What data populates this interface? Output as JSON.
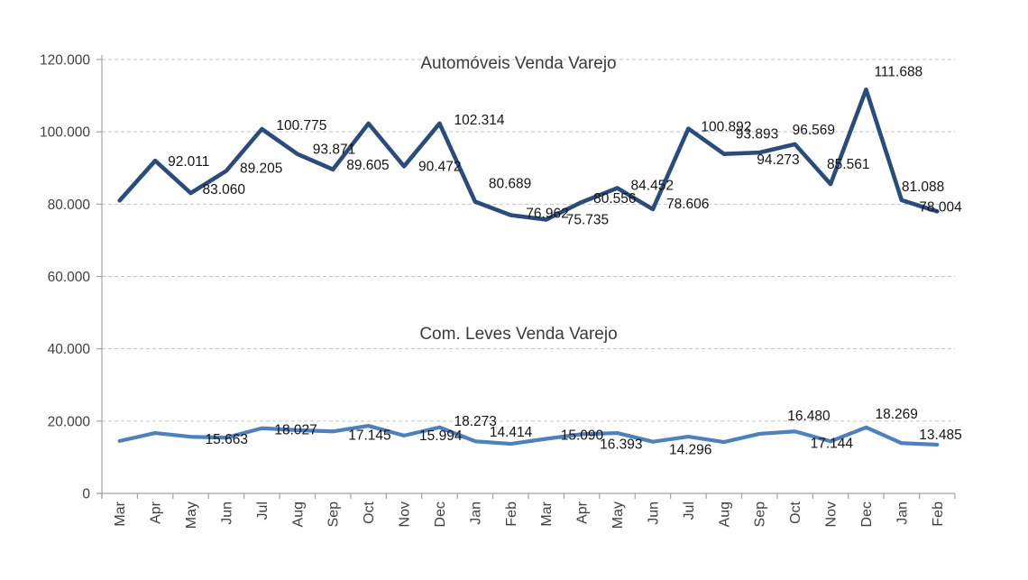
{
  "page": {
    "background_color": "#ffffff"
  },
  "chart_data": {
    "type": "line",
    "title": "",
    "grid": "horizontal dashed gridlines on, no vertical gridlines",
    "legend_position": "none (series names floated above each line)",
    "xlabel": "",
    "ylabel": "",
    "ylim": [
      0,
      120000
    ],
    "ytick_step": 20000,
    "ytick_labels": [
      "0",
      "20.000",
      "40.000",
      "60.000",
      "80.000",
      "100.000",
      "120.000"
    ],
    "x_tick_labels": [
      "Mar",
      "Apr",
      "May",
      "Jun",
      "Jul",
      "Aug",
      "Sep",
      "Oct",
      "Nov",
      "Dec",
      "Jan",
      "Feb",
      "Mar",
      "Apr",
      "May",
      "Jun",
      "Jul",
      "Aug",
      "Sep",
      "Oct",
      "Nov",
      "Dec",
      "Jan",
      "Feb"
    ],
    "axis_color": "#a3a3a3",
    "gridline_color": "#c3c3c3",
    "axis_text_color": "#3f3f3f",
    "data_label_color": "#141414",
    "series": [
      {
        "name": "Automóveis Venda Varejo",
        "color": "#2a4b7c",
        "stroke_width": 4.6,
        "values": [
          81000,
          92011,
          83060,
          89205,
          100775,
          93871,
          89605,
          102300,
          90472,
          102314,
          80689,
          76962,
          75735,
          80556,
          84452,
          78606,
          100892,
          93893,
          94273,
          96569,
          85561,
          111688,
          81088,
          78004
        ],
        "point_labels": [
          null,
          "92.011",
          "83.060",
          "89.205",
          "100.775",
          "93.871",
          "89.605",
          null,
          "90.472",
          "102.314",
          "80.689",
          "76.962",
          "75.735",
          "80.556",
          "84.452",
          "78.606",
          "100.892",
          "93.893",
          "94.273",
          "96.569",
          "85.561",
          "111.688",
          "81.088",
          "78.004"
        ],
        "label_offsets": [
          null,
          [
            14,
            6
          ],
          [
            13,
            1
          ],
          [
            15,
            2
          ],
          [
            16,
            1
          ],
          [
            17,
            0
          ],
          [
            15,
            0
          ],
          null,
          [
            16,
            5
          ],
          [
            16,
            1
          ],
          [
            15,
            -15
          ],
          [
            17,
            3
          ],
          [
            22,
            5
          ],
          [
            13,
            1
          ],
          [
            15,
            2
          ],
          [
            15,
            -1
          ],
          [
            14,
            3
          ],
          [
            13,
            -17
          ],
          [
            -3,
            13
          ],
          [
            -3,
            -11
          ],
          [
            -4,
            -17
          ],
          [
            9,
            -15
          ],
          [
            0,
            -10
          ],
          [
            -20,
            0
          ]
        ]
      },
      {
        "name": "Com. Leves Venda Varejo",
        "color": "#4e80bc",
        "stroke_width": 4.2,
        "values": [
          14500,
          16700,
          15663,
          15400,
          18027,
          17500,
          17145,
          18700,
          15994,
          18273,
          14414,
          13700,
          15090,
          16393,
          16700,
          14296,
          15700,
          14200,
          16480,
          17144,
          14400,
          18269,
          13900,
          13485
        ],
        "point_labels": [
          null,
          null,
          "15.663",
          null,
          "18.027",
          null,
          "17.145",
          null,
          "15.994",
          "18.273",
          "14.414",
          null,
          "15.090",
          "16.393",
          null,
          "14.296",
          null,
          null,
          "16.480",
          "17.144",
          null,
          "18.269",
          null,
          "13.485"
        ],
        "label_offsets": [
          null,
          null,
          [
            16,
            8
          ],
          null,
          [
            14,
            7
          ],
          null,
          [
            17,
            9
          ],
          null,
          [
            17,
            5
          ],
          [
            16,
            -2
          ],
          [
            16,
            -5
          ],
          null,
          [
            16,
            1
          ],
          [
            20,
            16
          ],
          null,
          [
            18,
            14
          ],
          null,
          null,
          [
            31,
            -15
          ],
          [
            17,
            18
          ],
          null,
          [
            10,
            -10
          ],
          null,
          [
            -20,
            -6
          ]
        ]
      }
    ]
  }
}
